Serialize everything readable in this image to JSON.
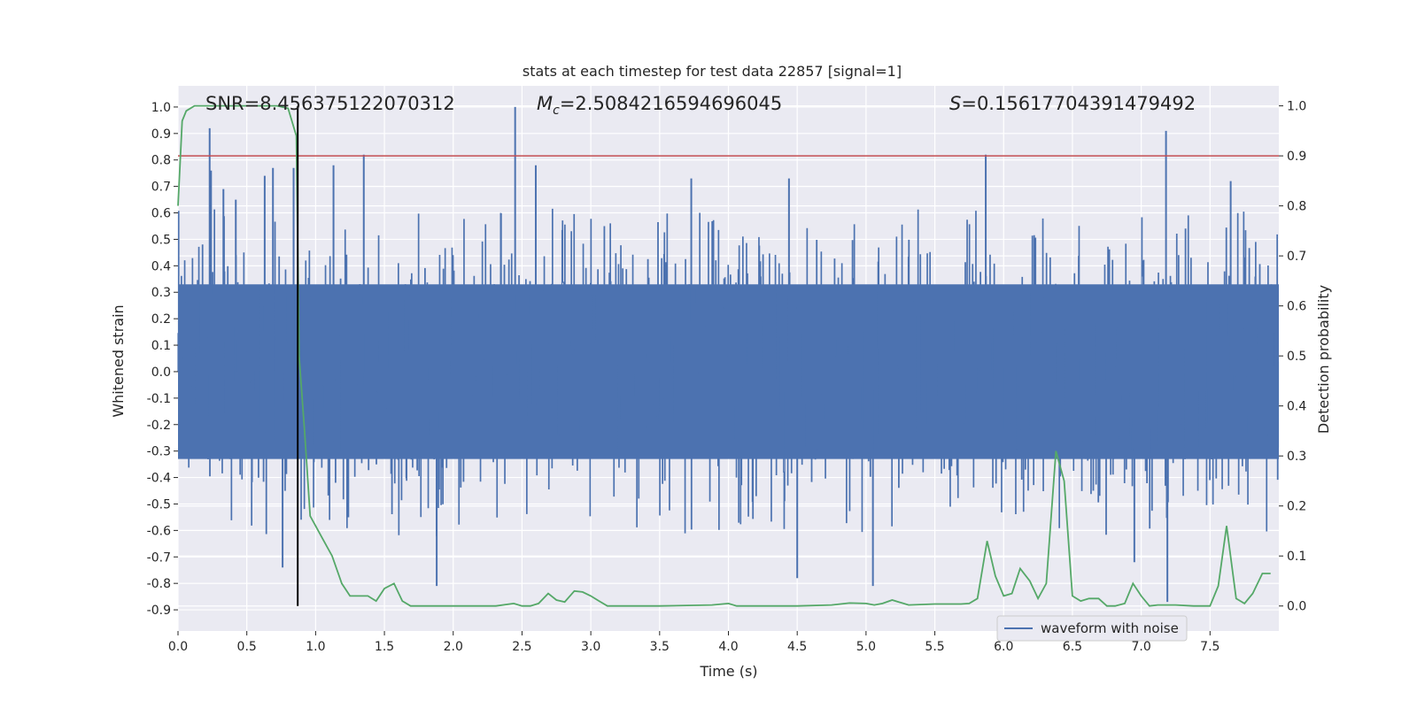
{
  "chart_data": {
    "type": "line",
    "title": "stats at each timestep for test data 22857 [signal=1]",
    "xlabel": "Time (s)",
    "ylabel_left": "Whitened strain",
    "ylabel_right": "Detection probability",
    "xlim": [
      0.0,
      8.0
    ],
    "ylim_left": [
      -0.98,
      1.08
    ],
    "ylim_right": [
      -0.05,
      1.04
    ],
    "x_ticks": [
      "0.0",
      "0.5",
      "1.0",
      "1.5",
      "2.0",
      "2.5",
      "3.0",
      "3.5",
      "4.0",
      "4.5",
      "5.0",
      "5.5",
      "6.0",
      "6.5",
      "7.0",
      "7.5"
    ],
    "y_left_ticks": [
      "1.0",
      "0.9",
      "0.8",
      "0.7",
      "0.6",
      "0.5",
      "0.4",
      "0.3",
      "0.2",
      "0.1",
      "0.0",
      "-0.1",
      "-0.2",
      "-0.3",
      "-0.4",
      "-0.5",
      "-0.6",
      "-0.7",
      "-0.8",
      "-0.9"
    ],
    "y_right_ticks": [
      "1.0",
      "0.9",
      "0.8",
      "0.7",
      "0.6",
      "0.5",
      "0.4",
      "0.3",
      "0.2",
      "0.1",
      "0.0"
    ],
    "grid": true,
    "annotations": {
      "snr": "SNR=8.456375122070312",
      "mc_symbol": "M",
      "mc_sub": "c",
      "mc_value": "=2.5084216594696045",
      "s_symbol": "S",
      "s_value": "=0.15617704391479492"
    },
    "threshold_probability": 0.9,
    "merger_time": 0.87,
    "waveform": {
      "name": "waveform with noise",
      "color": "#4c72b0",
      "core_amplitude": 0.33,
      "spikes": [
        {
          "t": 0.23,
          "v": 0.92
        },
        {
          "t": 0.24,
          "v": 0.76
        },
        {
          "t": 0.33,
          "v": 0.69
        },
        {
          "t": 0.42,
          "v": 0.65
        },
        {
          "t": 0.63,
          "v": 0.74
        },
        {
          "t": 0.69,
          "v": 0.77
        },
        {
          "t": 0.84,
          "v": 0.77
        },
        {
          "t": 1.13,
          "v": 0.78
        },
        {
          "t": 1.35,
          "v": 0.82
        },
        {
          "t": 2.45,
          "v": 1.0
        },
        {
          "t": 2.6,
          "v": 0.78
        },
        {
          "t": 3.73,
          "v": 0.73
        },
        {
          "t": 4.44,
          "v": 0.73
        },
        {
          "t": 5.87,
          "v": 0.82
        },
        {
          "t": 7.18,
          "v": 0.91
        },
        {
          "t": 7.65,
          "v": 0.72
        },
        {
          "t": 1.88,
          "v": -0.81
        },
        {
          "t": 0.76,
          "v": -0.74
        },
        {
          "t": 4.5,
          "v": -0.78
        },
        {
          "t": 5.05,
          "v": -0.81
        },
        {
          "t": 7.19,
          "v": -0.87
        },
        {
          "t": 6.95,
          "v": -0.72
        }
      ]
    },
    "detection_probability": {
      "color": "#55a868",
      "x": [
        0.0,
        0.03,
        0.06,
        0.12,
        0.2,
        0.4,
        0.6,
        0.72,
        0.8,
        0.86,
        0.88,
        0.92,
        0.96,
        1.0,
        1.06,
        1.12,
        1.19,
        1.25,
        1.38,
        1.44,
        1.5,
        1.57,
        1.63,
        1.69,
        1.88,
        2.0,
        2.31,
        2.44,
        2.5,
        2.56,
        2.62,
        2.69,
        2.75,
        2.81,
        2.88,
        2.94,
        3.0,
        3.06,
        3.12,
        3.25,
        3.5,
        3.88,
        4.0,
        4.06,
        4.25,
        4.5,
        4.75,
        4.88,
        5.0,
        5.06,
        5.12,
        5.19,
        5.31,
        5.5,
        5.69,
        5.75,
        5.81,
        5.88,
        5.94,
        6.0,
        6.06,
        6.12,
        6.19,
        6.25,
        6.31,
        6.38,
        6.44,
        6.5,
        6.56,
        6.62,
        6.69,
        6.75,
        6.81,
        6.88,
        6.94,
        7.0,
        7.06,
        7.12,
        7.25,
        7.38,
        7.5,
        7.56,
        7.62,
        7.69,
        7.75,
        7.81,
        7.88,
        7.94
      ],
      "y": [
        0.8,
        0.97,
        0.99,
        1.0,
        1.0,
        1.0,
        1.0,
        1.0,
        0.995,
        0.94,
        0.5,
        0.35,
        0.18,
        0.16,
        0.13,
        0.1,
        0.045,
        0.02,
        0.02,
        0.01,
        0.035,
        0.045,
        0.01,
        0.0,
        0.0,
        0.0,
        0.0,
        0.005,
        0.0,
        0.0,
        0.005,
        0.025,
        0.012,
        0.008,
        0.03,
        0.028,
        0.02,
        0.01,
        0.0,
        0.0,
        0.0,
        0.002,
        0.005,
        0.0,
        0.0,
        0.0,
        0.002,
        0.006,
        0.005,
        0.002,
        0.005,
        0.012,
        0.002,
        0.004,
        0.004,
        0.005,
        0.015,
        0.13,
        0.06,
        0.02,
        0.025,
        0.075,
        0.05,
        0.015,
        0.045,
        0.31,
        0.25,
        0.02,
        0.01,
        0.015,
        0.015,
        0.0,
        0.0,
        0.005,
        0.045,
        0.02,
        0.0,
        0.002,
        0.002,
        0.0,
        0.0,
        0.04,
        0.16,
        0.015,
        0.005,
        0.025,
        0.065,
        0.065
      ]
    },
    "legend": {
      "label": "waveform with noise",
      "position": "lower-right"
    }
  }
}
